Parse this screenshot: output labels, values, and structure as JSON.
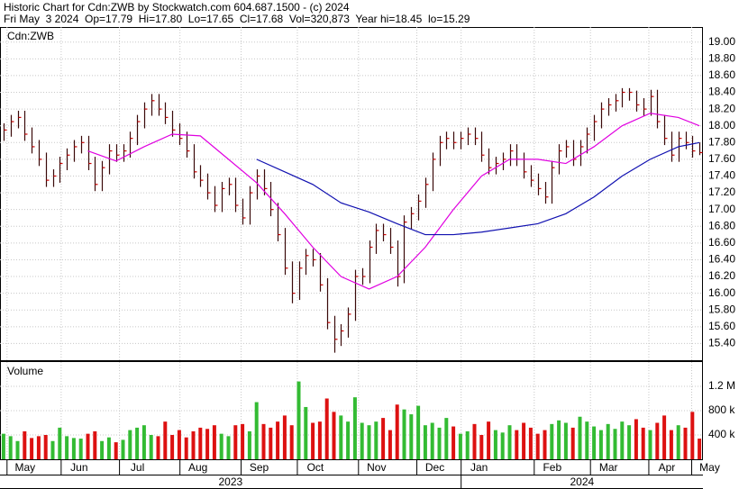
{
  "chart_data": [
    {
      "type": "hlc",
      "title": "Historic Chart for Cdn:ZWB by Stockwatch.com 604.687.1500 - (c) 2024",
      "subtitle": "Fri May  3 2024  Op=17.79  Hi=17.80  Lo=17.65  Cl=17.68  Vol=320,873  Year hi=18.45  lo=15.29",
      "label": "Cdn:ZWB",
      "color": "#3a0a0a",
      "close_color": "#cc0000",
      "grid": true,
      "xlim": [
        -0.5,
        99.5
      ],
      "ylim": [
        15.2,
        19.18
      ],
      "yticks": [
        {
          "value": 15.4,
          "label": "15.40"
        },
        {
          "value": 15.6,
          "label": "15.60"
        },
        {
          "value": 15.8,
          "label": "15.80"
        },
        {
          "value": 16,
          "label": "16.00"
        },
        {
          "value": 16.2,
          "label": "16.20"
        },
        {
          "value": 16.4,
          "label": "16.40"
        },
        {
          "value": 16.6,
          "label": "16.60"
        },
        {
          "value": 16.8,
          "label": "16.80"
        },
        {
          "value": 17,
          "label": "17.00"
        },
        {
          "value": 17.2,
          "label": "17.20"
        },
        {
          "value": 17.4,
          "label": "17.40"
        },
        {
          "value": 17.6,
          "label": "17.60"
        },
        {
          "value": 17.8,
          "label": "17.80"
        },
        {
          "value": 18,
          "label": "18.00"
        },
        {
          "value": 18.2,
          "label": "18.20"
        },
        {
          "value": 18.4,
          "label": "18.40"
        },
        {
          "value": 18.6,
          "label": "18.60"
        },
        {
          "value": 18.8,
          "label": "18.80"
        },
        {
          "value": 19,
          "label": "19.00"
        }
      ],
      "high": [
        18.03,
        18.13,
        18.18,
        18.18,
        17.98,
        17.83,
        17.68,
        17.48,
        17.63,
        17.73,
        17.83,
        17.88,
        17.88,
        17.63,
        17.58,
        17.78,
        17.78,
        17.78,
        17.93,
        18.13,
        18.28,
        18.38,
        18.38,
        18.28,
        18.18,
        18.03,
        17.93,
        17.78,
        17.53,
        17.43,
        17.28,
        17.33,
        17.38,
        17.38,
        17.13,
        17.28,
        17.48,
        17.48,
        17.33,
        17.08,
        16.78,
        16.38,
        16.38,
        16.53,
        16.53,
        16.48,
        16.18,
        15.73,
        15.63,
        15.83,
        16.28,
        16.3,
        16.63,
        16.83,
        16.83,
        16.78,
        16.63,
        16.93,
        17.03,
        17.18,
        17.38,
        17.68,
        17.88,
        17.93,
        17.93,
        17.93,
        17.98,
        17.98,
        17.93,
        17.73,
        17.63,
        17.68,
        17.78,
        17.78,
        17.68,
        17.53,
        17.43,
        17.33,
        17.58,
        17.78,
        17.83,
        17.83,
        17.83,
        17.98,
        18.13,
        18.28,
        18.33,
        18.38,
        18.45,
        18.45,
        18.42,
        18.33,
        18.43,
        18.43,
        18.13,
        17.93,
        17.93,
        17.93,
        17.88,
        17.8
      ],
      "low": [
        17.82,
        17.87,
        17.97,
        17.82,
        17.67,
        17.52,
        17.27,
        17.27,
        17.32,
        17.47,
        17.57,
        17.67,
        17.47,
        17.22,
        17.22,
        17.42,
        17.57,
        17.57,
        17.62,
        17.77,
        17.97,
        18.12,
        18.12,
        18.02,
        17.87,
        17.77,
        17.62,
        17.37,
        17.27,
        17.12,
        16.97,
        16.97,
        17.17,
        16.97,
        16.82,
        16.82,
        17.12,
        17.17,
        16.92,
        16.62,
        16.22,
        15.88,
        15.92,
        16.22,
        16.32,
        16.02,
        15.57,
        15.29,
        15.37,
        15.47,
        15.67,
        16.1,
        16.12,
        16.47,
        16.62,
        16.47,
        16.08,
        16.12,
        16.77,
        16.87,
        17.02,
        17.22,
        17.52,
        17.72,
        17.72,
        17.72,
        17.77,
        17.77,
        17.57,
        17.42,
        17.42,
        17.47,
        17.52,
        17.52,
        17.37,
        17.27,
        17.17,
        17.07,
        17.07,
        17.42,
        17.62,
        17.52,
        17.52,
        17.67,
        17.82,
        17.97,
        18.12,
        18.17,
        18.22,
        18.3,
        18.17,
        18.12,
        18.12,
        17.97,
        17.77,
        17.57,
        17.57,
        17.72,
        17.62,
        17.65
      ],
      "close": [
        17.95,
        18.05,
        18.1,
        17.9,
        17.75,
        17.6,
        17.35,
        17.4,
        17.55,
        17.65,
        17.75,
        17.8,
        17.55,
        17.3,
        17.5,
        17.7,
        17.65,
        17.7,
        17.85,
        18.05,
        18.2,
        18.3,
        18.2,
        18.1,
        17.95,
        17.85,
        17.7,
        17.45,
        17.35,
        17.2,
        17.05,
        17.25,
        17.3,
        17.05,
        16.9,
        17.2,
        17.4,
        17.25,
        17,
        16.7,
        16.3,
        16,
        16.3,
        16.45,
        16.4,
        16.1,
        15.65,
        15.45,
        15.55,
        15.75,
        16.2,
        16.2,
        16.55,
        16.75,
        16.7,
        16.55,
        16.2,
        16.85,
        16.95,
        17.1,
        17.3,
        17.6,
        17.8,
        17.85,
        17.8,
        17.85,
        17.9,
        17.85,
        17.65,
        17.5,
        17.55,
        17.6,
        17.7,
        17.6,
        17.45,
        17.35,
        17.25,
        17.15,
        17.5,
        17.7,
        17.75,
        17.6,
        17.75,
        17.9,
        18.05,
        18.2,
        18.25,
        18.3,
        18.4,
        18.4,
        18.25,
        18.2,
        18.35,
        18.05,
        17.85,
        17.65,
        17.85,
        17.8,
        17.7,
        17.68
      ],
      "series": [
        {
          "color": "#e000e0",
          "x": [
            12,
            16,
            20,
            24,
            28,
            32,
            36,
            40,
            44,
            48,
            52,
            56,
            60,
            64,
            68,
            72,
            76,
            80,
            84,
            88,
            92,
            96,
            99
          ],
          "values": [
            17.7,
            17.58,
            17.75,
            17.9,
            17.88,
            17.6,
            17.32,
            16.95,
            16.55,
            16.2,
            16.05,
            16.2,
            16.55,
            17,
            17.4,
            17.6,
            17.6,
            17.55,
            17.75,
            18,
            18.15,
            18.1,
            18
          ]
        },
        {
          "color": "#1010b0",
          "x": [
            36,
            40,
            44,
            48,
            52,
            56,
            60,
            64,
            68,
            72,
            76,
            80,
            84,
            88,
            92,
            96,
            99
          ],
          "values": [
            17.6,
            17.45,
            17.3,
            17.08,
            16.97,
            16.83,
            16.7,
            16.7,
            16.73,
            16.78,
            16.83,
            16.95,
            17.15,
            17.4,
            17.6,
            17.75,
            17.8
          ]
        }
      ]
    },
    {
      "type": "bar",
      "label": "Volume",
      "up_color": "#33bb33",
      "down_color": "#dd1111",
      "grid": true,
      "xlim": [
        -0.5,
        99.5
      ],
      "ylim": [
        0,
        1600000
      ],
      "yticks": [
        {
          "value": 400000,
          "label": "400 k"
        },
        {
          "value": 800000,
          "label": "800 k"
        },
        {
          "value": 1200000,
          "label": "1.2 M"
        }
      ],
      "values": [
        420000,
        380000,
        300000,
        460000,
        350000,
        380000,
        400000,
        300000,
        520000,
        380000,
        350000,
        340000,
        420000,
        460000,
        300000,
        360000,
        280000,
        320000,
        480000,
        520000,
        560000,
        400000,
        380000,
        620000,
        400000,
        480000,
        360000,
        460000,
        520000,
        500000,
        560000,
        420000,
        380000,
        560000,
        580000,
        460000,
        940000,
        580000,
        520000,
        620000,
        720000,
        560000,
        1280000,
        860000,
        600000,
        620000,
        1000000,
        780000,
        720000,
        620000,
        1020000,
        600000,
        560000,
        620000,
        680000,
        480000,
        900000,
        820000,
        740000,
        880000,
        560000,
        600000,
        520000,
        680000,
        540000,
        420000,
        460000,
        580000,
        400000,
        620000,
        480000,
        440000,
        560000,
        480000,
        600000,
        520000,
        420000,
        480000,
        580000,
        640000,
        600000,
        520000,
        700000,
        620000,
        540000,
        480000,
        580000,
        500000,
        620000,
        560000,
        660000,
        520000,
        480000,
        600000,
        720000,
        480000,
        560000,
        520000,
        780000,
        340000
      ],
      "xticks": [
        {
          "value": 0.5,
          "label": "May"
        },
        {
          "value": 8.2,
          "label": "Jun"
        },
        {
          "value": 16.5,
          "label": "Jul"
        },
        {
          "value": 25.1,
          "label": "Aug"
        },
        {
          "value": 33.8,
          "label": "Sep"
        },
        {
          "value": 41.8,
          "label": "Oct"
        },
        {
          "value": 50.5,
          "label": "Nov"
        },
        {
          "value": 58.8,
          "label": "Dec"
        },
        {
          "value": 65.1,
          "label": "Jan"
        },
        {
          "value": 75.5,
          "label": "Feb"
        },
        {
          "value": 83.5,
          "label": "Mar"
        },
        {
          "value": 91.8,
          "label": "Apr"
        },
        {
          "value": 97.9,
          "label": "May"
        }
      ],
      "years": [
        "2023",
        "2024"
      ]
    }
  ]
}
